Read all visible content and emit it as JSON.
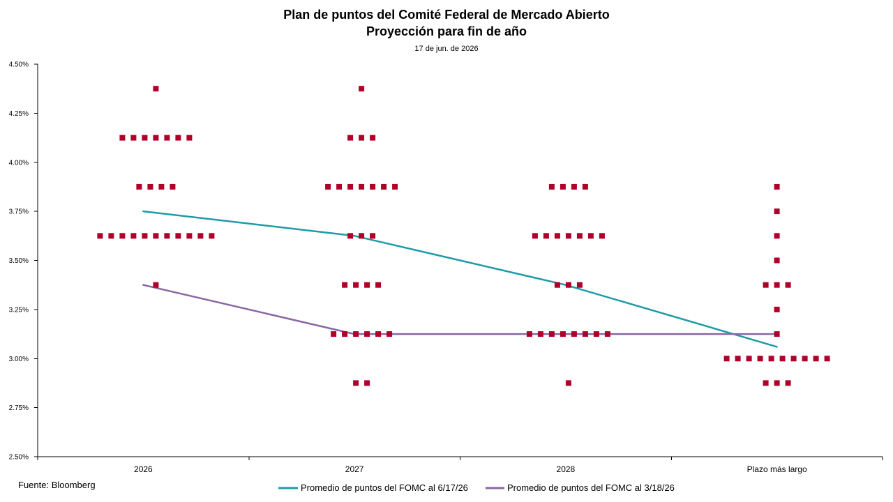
{
  "chart_data": {
    "type": "scatter",
    "title": "Plan de puntos del Comité Federal de Mercado Abierto",
    "subtitle": "Proyección para fin de año",
    "date": "17 de jun. de 2026",
    "categories": [
      "2026",
      "2027",
      "2028",
      "Plazo más largo"
    ],
    "ylim": [
      2.5,
      4.5
    ],
    "y_ticks": [
      "4.50%",
      "4.25%",
      "4.00%",
      "3.75%",
      "3.50%",
      "3.25%",
      "3.00%",
      "2.75%",
      "2.50%"
    ],
    "grid": false,
    "dot_color": "#B0002A",
    "dots": [
      [
        {
          "rate": 4.375,
          "count": 1
        },
        {
          "rate": 4.125,
          "count": 7
        },
        {
          "rate": 3.875,
          "count": 4
        },
        {
          "rate": 3.625,
          "count": 11
        },
        {
          "rate": 3.375,
          "count": 1
        }
      ],
      [
        {
          "rate": 4.375,
          "count": 1
        },
        {
          "rate": 4.125,
          "count": 3
        },
        {
          "rate": 3.875,
          "count": 7
        },
        {
          "rate": 3.625,
          "count": 3
        },
        {
          "rate": 3.375,
          "count": 4
        },
        {
          "rate": 3.125,
          "count": 6
        },
        {
          "rate": 2.875,
          "count": 2
        }
      ],
      [
        {
          "rate": 3.875,
          "count": 4
        },
        {
          "rate": 3.625,
          "count": 7
        },
        {
          "rate": 3.375,
          "count": 3
        },
        {
          "rate": 3.125,
          "count": 8
        },
        {
          "rate": 2.875,
          "count": 1
        }
      ],
      [
        {
          "rate": 3.875,
          "count": 1
        },
        {
          "rate": 3.75,
          "count": 1
        },
        {
          "rate": 3.625,
          "count": 1
        },
        {
          "rate": 3.5,
          "count": 1
        },
        {
          "rate": 3.375,
          "count": 3
        },
        {
          "rate": 3.25,
          "count": 1
        },
        {
          "rate": 3.125,
          "count": 1
        },
        {
          "rate": 3.0,
          "count": 10
        },
        {
          "rate": 2.875,
          "count": 3
        }
      ]
    ],
    "series": [
      {
        "name": "Promedio de puntos del FOMC al 6/17/26",
        "color": "#1E9BA6",
        "values": [
          3.75,
          3.625,
          3.375,
          3.06
        ]
      },
      {
        "name": "Promedio de puntos del FOMC al 3/18/26",
        "color": "#8A66A3",
        "values": [
          3.375,
          3.125,
          3.125,
          3.125
        ]
      }
    ],
    "legend_position": "bottom",
    "source": "Fuente: Bloomberg"
  }
}
